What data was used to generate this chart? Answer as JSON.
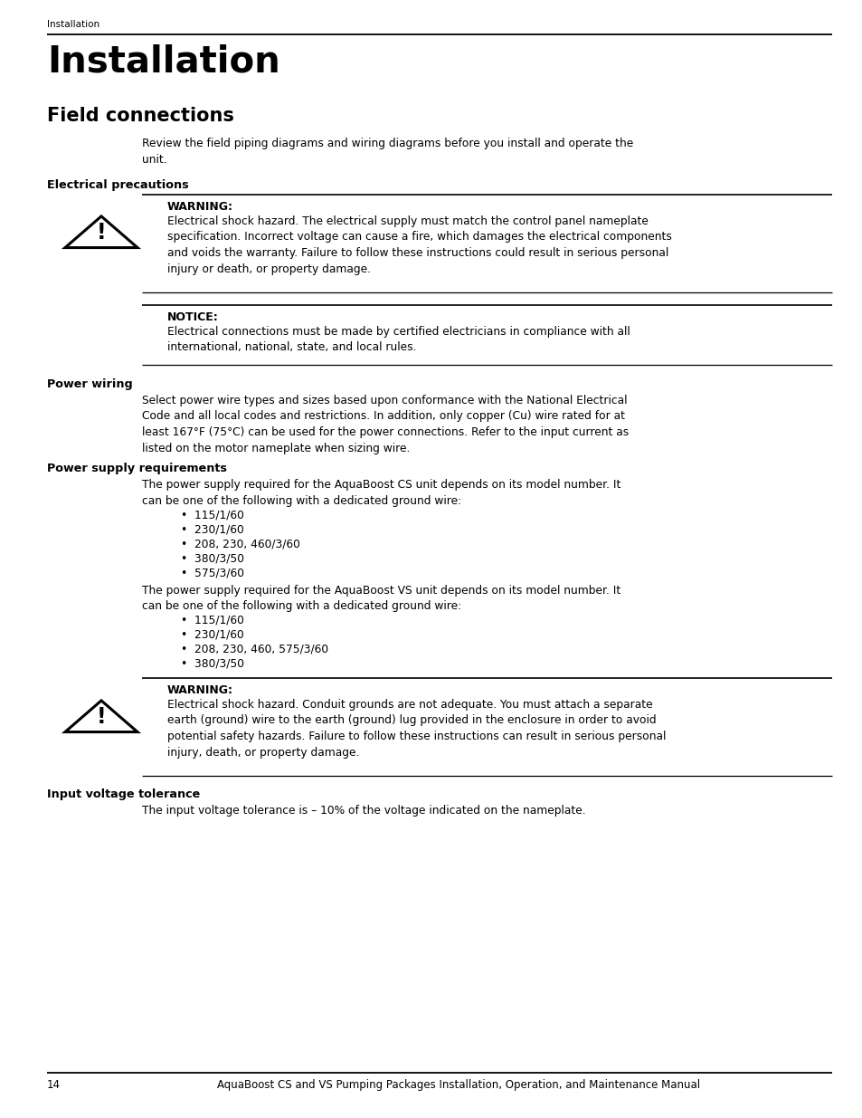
{
  "bg_color": "#ffffff",
  "breadcrumb": "Installation",
  "title": "Installation",
  "subtitle": "Field connections",
  "intro_text": "Review the field piping diagrams and wiring diagrams before you install and operate the\nunit.",
  "section1_heading": "Electrical precautions",
  "warning1_label": "WARNING:",
  "warning1_text": "Electrical shock hazard. The electrical supply must match the control panel nameplate\nspecification. Incorrect voltage can cause a fire, which damages the electrical components\nand voids the warranty. Failure to follow these instructions could result in serious personal\ninjury or death, or property damage.",
  "notice_label": "NOTICE:",
  "notice_text": "Electrical connections must be made by certified electricians in compliance with all\ninternational, national, state, and local rules.",
  "section2_heading": "Power wiring",
  "power_wiring_text": "Select power wire types and sizes based upon conformance with the National Electrical\nCode and all local codes and restrictions. In addition, only copper (Cu) wire rated for at\nleast 167°F (75°C) can be used for the power connections. Refer to the input current as\nlisted on the motor nameplate when sizing wire.",
  "section3_heading": "Power supply requirements",
  "ps_intro_cs": "The power supply required for the AquaBoost CS unit depends on its model number. It\ncan be one of the following with a dedicated ground wire:",
  "ps_bullets_cs": [
    "115/1/60",
    "230/1/60",
    "208, 230, 460/3/60",
    "380/3/50",
    "575/3/60"
  ],
  "ps_intro_vs": "The power supply required for the AquaBoost VS unit depends on its model number. It\ncan be one of the following with a dedicated ground wire:",
  "ps_bullets_vs": [
    "115/1/60",
    "230/1/60",
    "208, 230, 460, 575/3/60",
    "380/3/50"
  ],
  "warning2_label": "WARNING:",
  "warning2_text": "Electrical shock hazard. Conduit grounds are not adequate. You must attach a separate\nearth (ground) wire to the earth (ground) lug provided in the enclosure in order to avoid\npotential safety hazards. Failure to follow these instructions can result in serious personal\ninjury, death, or property damage.",
  "section4_heading": "Input voltage tolerance",
  "input_voltage_text": "The input voltage tolerance is – 10% of the voltage indicated on the nameplate.",
  "footer_page": "14",
  "footer_text": "AquaBoost CS and VS Pumping Packages Installation, Operation, and Maintenance Manual"
}
